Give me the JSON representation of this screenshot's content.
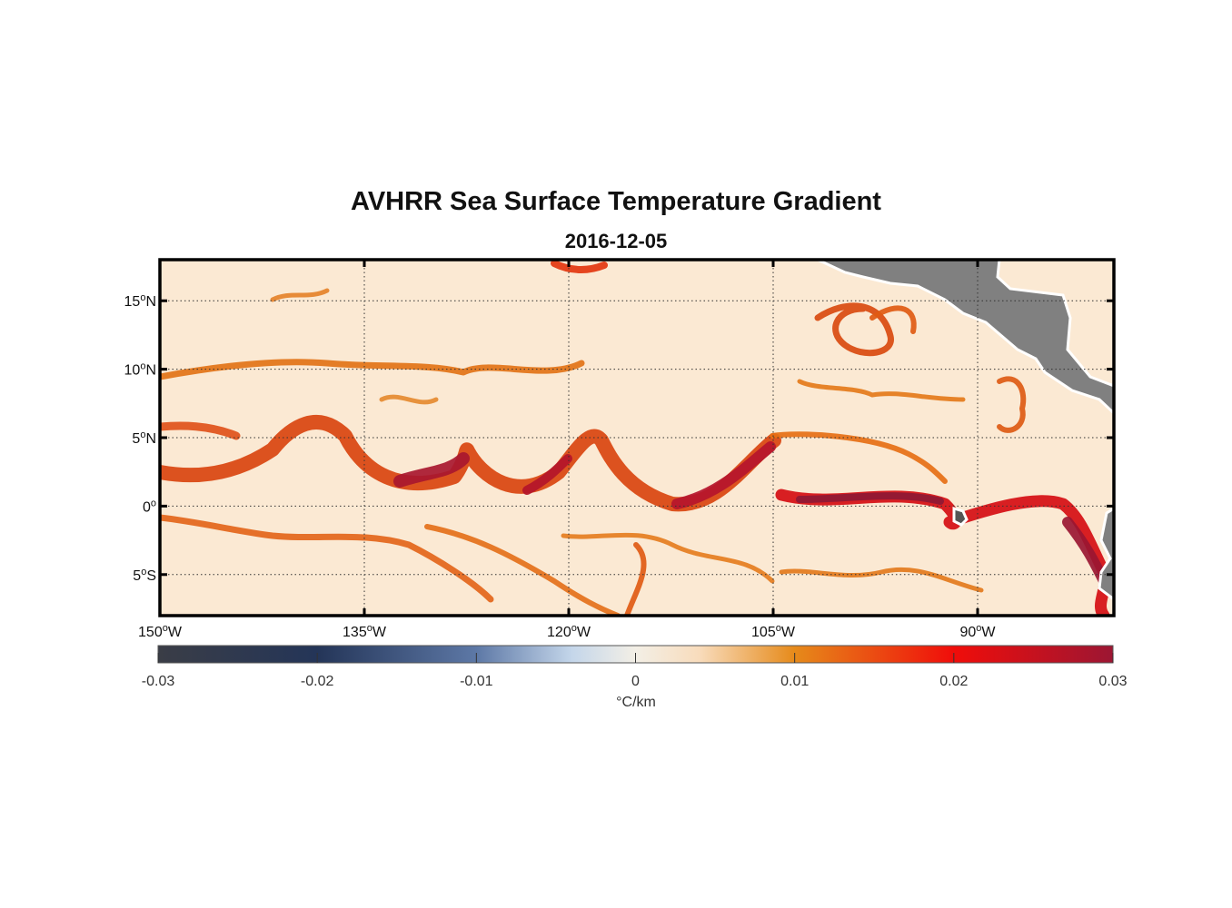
{
  "title": "AVHRR Sea Surface Temperature Gradient",
  "subtitle": "2016-12-05",
  "map": {
    "lon_range": [
      -150,
      -80
    ],
    "lat_range": [
      -8,
      18
    ],
    "lat_labels": [
      {
        "lat": 15,
        "text": "15",
        "deg": "o",
        "hemi": "N"
      },
      {
        "lat": 10,
        "text": "10",
        "deg": "o",
        "hemi": "N"
      },
      {
        "lat": 5,
        "text": "5",
        "deg": "o",
        "hemi": "N"
      },
      {
        "lat": 0,
        "text": "0",
        "deg": "o",
        "hemi": ""
      },
      {
        "lat": -5,
        "text": "5",
        "deg": "o",
        "hemi": "S"
      }
    ],
    "lon_labels": [
      {
        "lon": -150,
        "text": "150",
        "deg": "o",
        "hemi": "W"
      },
      {
        "lon": -135,
        "text": "135",
        "deg": "o",
        "hemi": "W"
      },
      {
        "lon": -120,
        "text": "120",
        "deg": "o",
        "hemi": "W"
      },
      {
        "lon": -105,
        "text": "105",
        "deg": "o",
        "hemi": "W"
      },
      {
        "lon": -90,
        "text": "90",
        "deg": "o",
        "hemi": "W"
      }
    ],
    "colors": {
      "ocean_background": "#fbe9d3",
      "land": "#808080",
      "coast": "#ffffff",
      "grid": "#333333"
    }
  },
  "colorbar": {
    "ticks": [
      "-0.03",
      "-0.02",
      "-0.01",
      "0",
      "0.01",
      "0.02",
      "0.03"
    ],
    "range": [
      -0.03,
      0.03
    ],
    "label": "°C/km",
    "stops": [
      {
        "v": -0.03,
        "color": "#3a3d46"
      },
      {
        "v": -0.02,
        "color": "#243558"
      },
      {
        "v": -0.01,
        "color": "#5d78a6"
      },
      {
        "v": -0.004,
        "color": "#c4d6ea"
      },
      {
        "v": 0,
        "color": "#f3efe6"
      },
      {
        "v": 0.004,
        "color": "#f8dcbc"
      },
      {
        "v": 0.01,
        "color": "#e68a1a"
      },
      {
        "v": 0.02,
        "color": "#f00d0a"
      },
      {
        "v": 0.03,
        "color": "#9c1633"
      }
    ]
  }
}
